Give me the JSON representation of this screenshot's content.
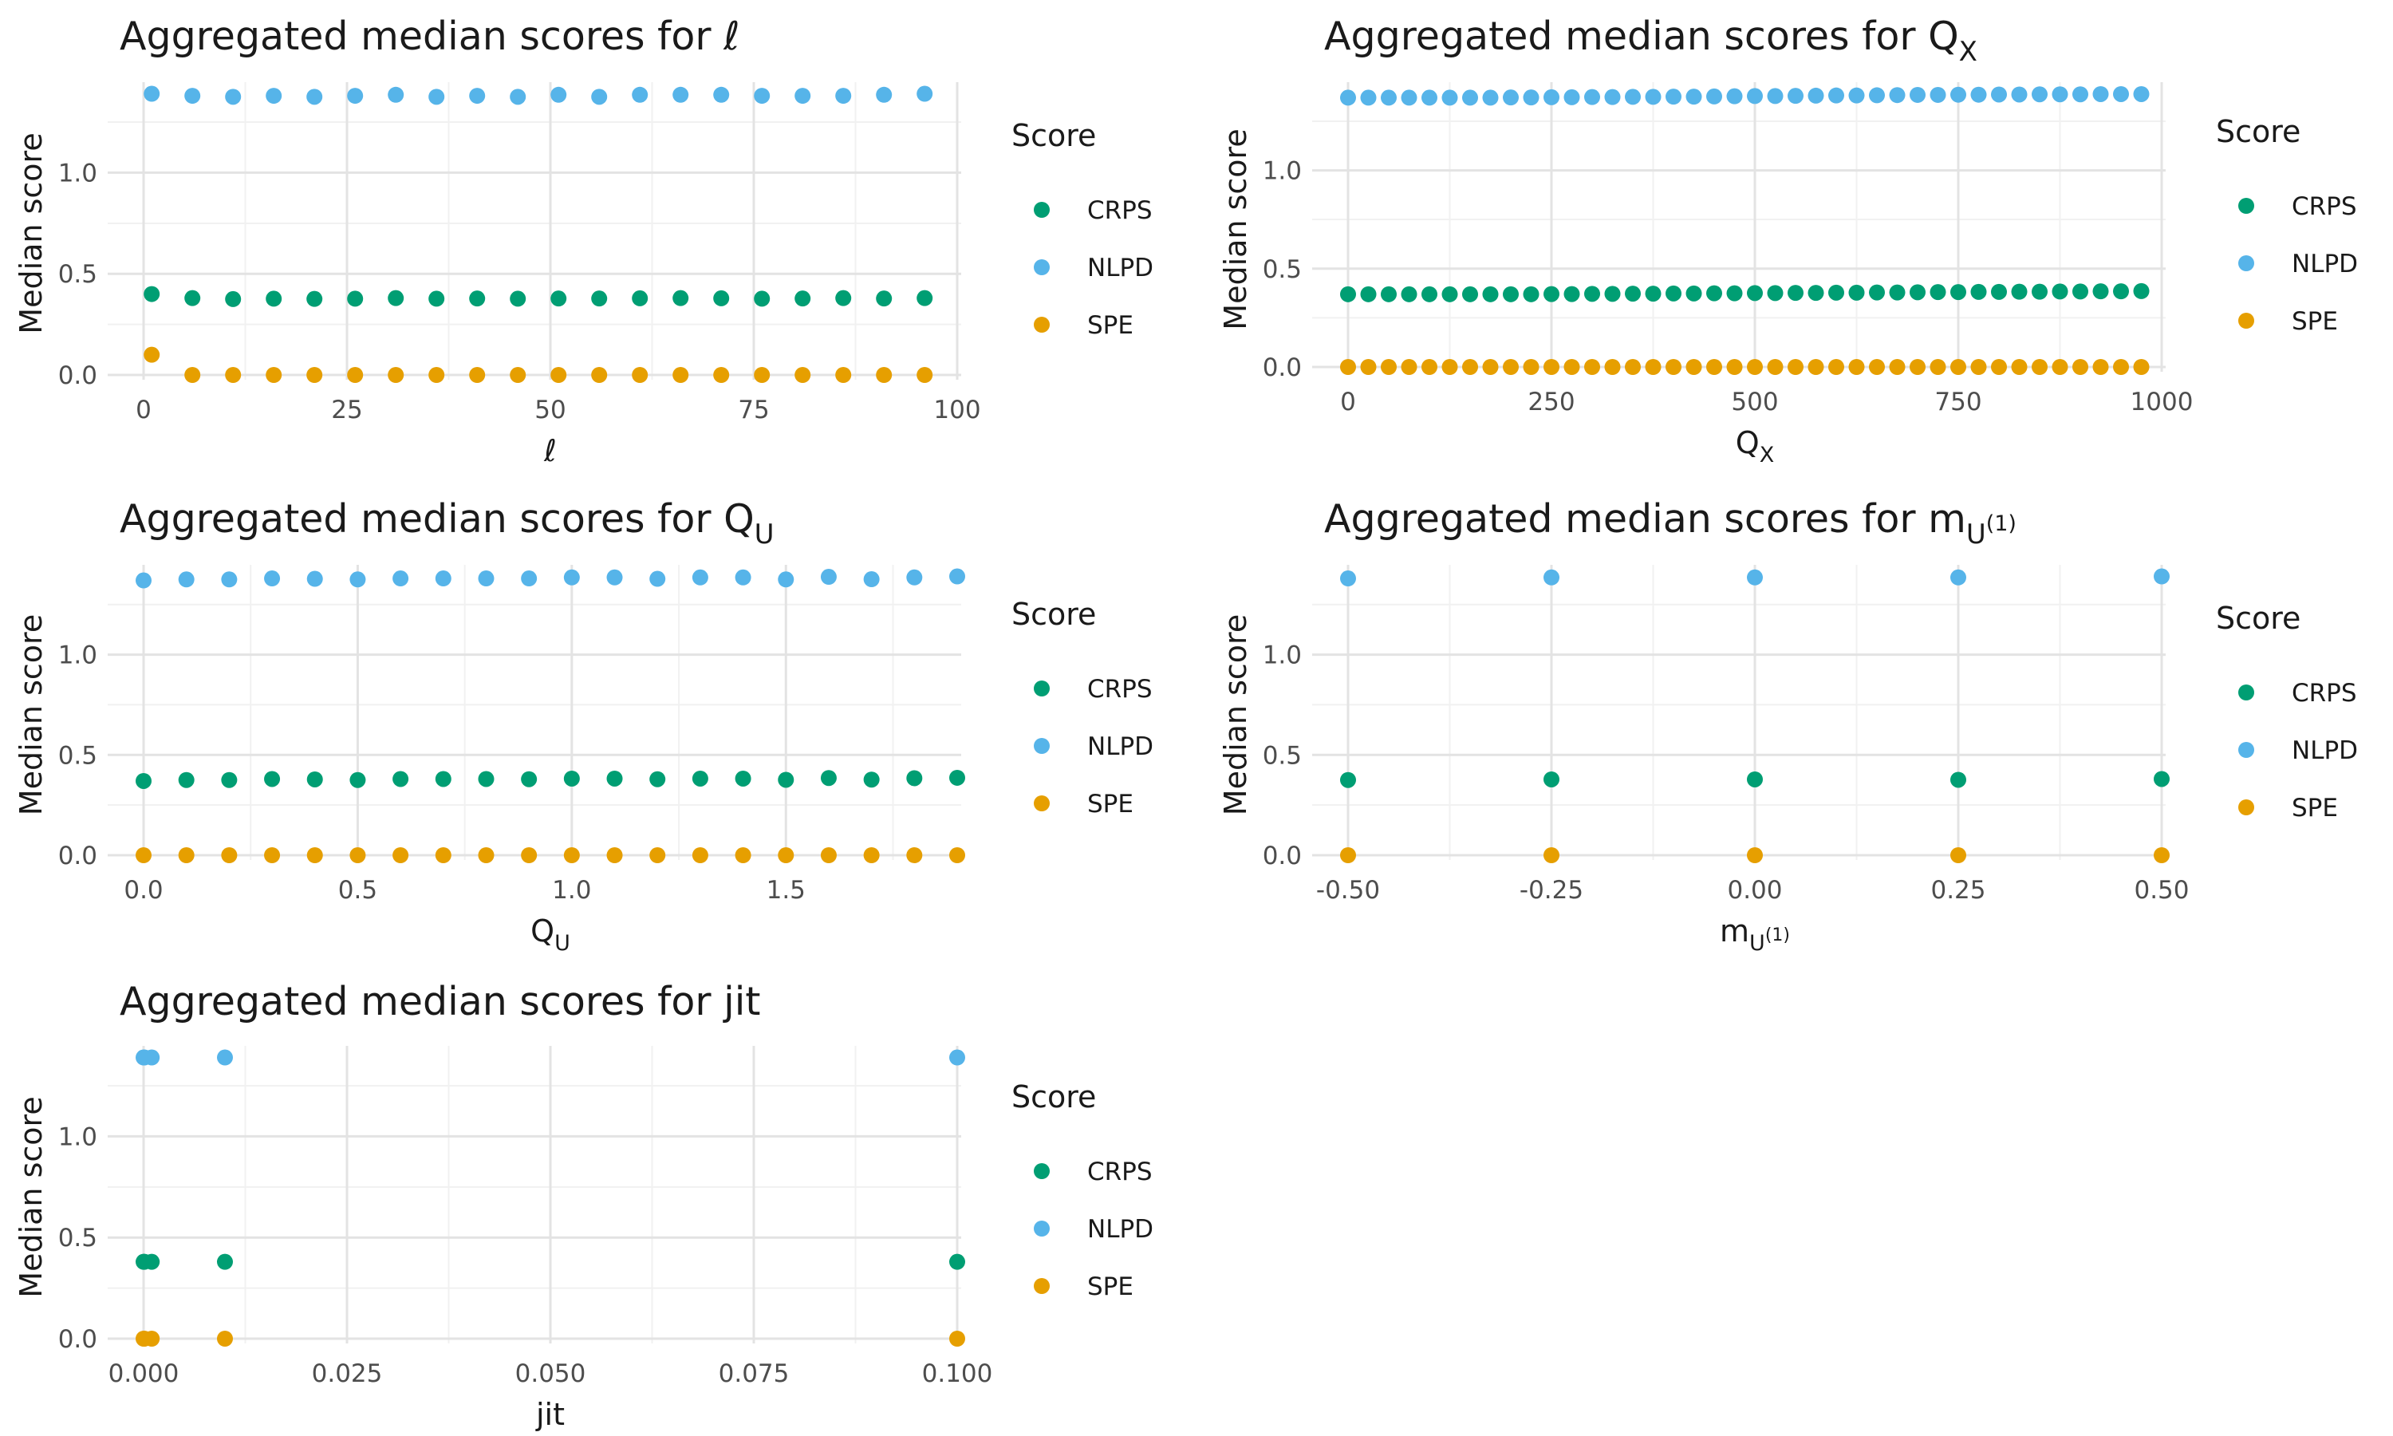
{
  "legend": {
    "title": "Score",
    "entries": [
      {
        "label": "CRPS",
        "color": "#009E73"
      },
      {
        "label": "NLPD",
        "color": "#56B4E9"
      },
      {
        "label": "SPE",
        "color": "#E69F00"
      }
    ]
  },
  "chart_data": [
    {
      "type": "scatter",
      "title_prefix": "Aggregated median scores for ",
      "symbol": {
        "main": "ℓ",
        "sub": "",
        "sup": ""
      },
      "xlabel": "ℓ",
      "ylabel": "Median score",
      "xlim": [
        0,
        100
      ],
      "ylim": [
        0,
        1.4
      ],
      "xticks": [
        {
          "value": 0,
          "label": "0"
        },
        {
          "value": 25,
          "label": "25"
        },
        {
          "value": 50,
          "label": "50"
        },
        {
          "value": 75,
          "label": "75"
        },
        {
          "value": 100,
          "label": "100"
        }
      ],
      "yticks": [
        {
          "value": 0,
          "label": "0.0"
        },
        {
          "value": 0.5,
          "label": "0.5"
        },
        {
          "value": 1,
          "label": "1.0"
        }
      ],
      "grid": true,
      "legend_position": "right",
      "x": [
        1,
        6,
        11,
        16,
        21,
        26,
        31,
        36,
        41,
        46,
        51,
        56,
        61,
        66,
        71,
        76,
        81,
        86,
        91,
        96
      ],
      "series": [
        {
          "name": "CRPS",
          "values": [
            0.4,
            0.38,
            0.375,
            0.377,
            0.376,
            0.377,
            0.38,
            0.377,
            0.378,
            0.377,
            0.378,
            0.378,
            0.379,
            0.38,
            0.379,
            0.377,
            0.378,
            0.38,
            0.378,
            0.38
          ]
        },
        {
          "name": "NLPD",
          "values": [
            1.39,
            1.38,
            1.375,
            1.38,
            1.375,
            1.38,
            1.385,
            1.375,
            1.38,
            1.375,
            1.385,
            1.375,
            1.385,
            1.385,
            1.385,
            1.38,
            1.38,
            1.38,
            1.385,
            1.39
          ]
        },
        {
          "name": "SPE",
          "values": [
            0.1,
            0.0,
            0.0,
            0.0,
            0.0,
            0.0,
            0.0,
            0.0,
            0.0,
            0.0,
            0.0,
            0.0,
            0.0,
            0.0,
            0.0,
            0.0,
            0.0,
            0.0,
            0.0,
            0.0
          ]
        }
      ]
    },
    {
      "type": "scatter",
      "title_prefix": "Aggregated median scores for ",
      "symbol": {
        "main": "Q",
        "sub": "X",
        "sup": ""
      },
      "xlabel": "Q_X",
      "ylabel": "Median score",
      "xlim": [
        0,
        1000
      ],
      "ylim": [
        0,
        1.4
      ],
      "xticks": [
        {
          "value": 0,
          "label": "0"
        },
        {
          "value": 250,
          "label": "250"
        },
        {
          "value": 500,
          "label": "500"
        },
        {
          "value": 750,
          "label": "750"
        },
        {
          "value": 1000,
          "label": "1000"
        }
      ],
      "yticks": [
        {
          "value": 0,
          "label": "0.0"
        },
        {
          "value": 0.5,
          "label": "0.5"
        },
        {
          "value": 1,
          "label": "1.0"
        }
      ],
      "grid": true,
      "legend_position": "right",
      "x": [
        0,
        25,
        50,
        75,
        100,
        125,
        150,
        175,
        200,
        225,
        250,
        275,
        300,
        325,
        350,
        375,
        400,
        425,
        450,
        475,
        500,
        525,
        550,
        575,
        600,
        625,
        650,
        675,
        700,
        725,
        750,
        775,
        800,
        825,
        850,
        875,
        900,
        925,
        950,
        975
      ],
      "series": [
        {
          "name": "CRPS",
          "values": [
            0.37,
            0.37,
            0.37,
            0.37,
            0.37,
            0.37,
            0.37,
            0.37,
            0.37,
            0.37,
            0.371,
            0.371,
            0.372,
            0.372,
            0.373,
            0.373,
            0.374,
            0.374,
            0.375,
            0.375,
            0.376,
            0.376,
            0.377,
            0.377,
            0.378,
            0.378,
            0.379,
            0.379,
            0.38,
            0.381,
            0.381,
            0.382,
            0.382,
            0.383,
            0.383,
            0.384,
            0.384,
            0.385,
            0.385,
            0.386
          ]
        },
        {
          "name": "NLPD",
          "values": [
            1.37,
            1.37,
            1.37,
            1.37,
            1.37,
            1.37,
            1.37,
            1.37,
            1.371,
            1.371,
            1.372,
            1.372,
            1.373,
            1.373,
            1.374,
            1.374,
            1.375,
            1.375,
            1.376,
            1.377,
            1.378,
            1.378,
            1.379,
            1.38,
            1.381,
            1.381,
            1.382,
            1.383,
            1.384,
            1.384,
            1.385,
            1.385,
            1.386,
            1.386,
            1.387,
            1.387,
            1.387,
            1.388,
            1.388,
            1.388
          ]
        },
        {
          "name": "SPE",
          "values": [
            0.0,
            0.0,
            0.0,
            0.0,
            0.0,
            0.0,
            0.0,
            0.0,
            0.0,
            0.0,
            0.0,
            0.0,
            0.0,
            0.0,
            0.0,
            0.0,
            0.0,
            0.0,
            0.0,
            0.0,
            0.0,
            0.0,
            0.0,
            0.0,
            0.0,
            0.0,
            0.0,
            0.0,
            0.0,
            0.0,
            0.0,
            0.0,
            0.0,
            0.0,
            0.0,
            0.0,
            0.0,
            0.0,
            0.0,
            0.0
          ]
        }
      ]
    },
    {
      "type": "scatter",
      "title_prefix": "Aggregated median scores for ",
      "symbol": {
        "main": "Q",
        "sub": "U",
        "sup": ""
      },
      "xlabel": "Q_U",
      "ylabel": "Median score",
      "xlim": [
        0,
        1.9
      ],
      "ylim": [
        0,
        1.4
      ],
      "xticks": [
        {
          "value": 0,
          "label": "0.0"
        },
        {
          "value": 0.5,
          "label": "0.5"
        },
        {
          "value": 1,
          "label": "1.0"
        },
        {
          "value": 1.5,
          "label": "1.5"
        }
      ],
      "yticks": [
        {
          "value": 0,
          "label": "0.0"
        },
        {
          "value": 0.5,
          "label": "0.5"
        },
        {
          "value": 1,
          "label": "1.0"
        }
      ],
      "grid": true,
      "legend_position": "right",
      "x": [
        0.0,
        0.1,
        0.2,
        0.3,
        0.4,
        0.5,
        0.6,
        0.7,
        0.8,
        0.9,
        1.0,
        1.1,
        1.2,
        1.3,
        1.4,
        1.5,
        1.6,
        1.7,
        1.8,
        1.9
      ],
      "series": [
        {
          "name": "CRPS",
          "values": [
            0.37,
            0.375,
            0.375,
            0.38,
            0.378,
            0.375,
            0.38,
            0.38,
            0.38,
            0.379,
            0.382,
            0.382,
            0.379,
            0.382,
            0.382,
            0.376,
            0.385,
            0.377,
            0.384,
            0.386
          ]
        },
        {
          "name": "NLPD",
          "values": [
            1.37,
            1.375,
            1.375,
            1.38,
            1.378,
            1.375,
            1.38,
            1.38,
            1.38,
            1.38,
            1.385,
            1.385,
            1.378,
            1.385,
            1.385,
            1.375,
            1.388,
            1.376,
            1.385,
            1.39
          ]
        },
        {
          "name": "SPE",
          "values": [
            0.0,
            0.0,
            0.0,
            0.0,
            0.0,
            0.0,
            0.0,
            0.0,
            0.0,
            0.0,
            0.0,
            0.0,
            0.0,
            0.0,
            0.0,
            0.0,
            0.0,
            0.0,
            0.0,
            0.0
          ]
        }
      ]
    },
    {
      "type": "scatter",
      "title_prefix": "Aggregated median scores for ",
      "symbol": {
        "main": "m",
        "sub": "U",
        "sup": "(1)"
      },
      "xlabel": "m_U^(1)",
      "ylabel": "Median score",
      "xlim": [
        -0.5,
        0.5
      ],
      "ylim": [
        0,
        1.4
      ],
      "xticks": [
        {
          "value": -0.5,
          "label": "-0.50"
        },
        {
          "value": -0.25,
          "label": "-0.25"
        },
        {
          "value": 0,
          "label": "0.00"
        },
        {
          "value": 0.25,
          "label": "0.25"
        },
        {
          "value": 0.5,
          "label": "0.50"
        }
      ],
      "yticks": [
        {
          "value": 0,
          "label": "0.0"
        },
        {
          "value": 0.5,
          "label": "0.5"
        },
        {
          "value": 1,
          "label": "1.0"
        }
      ],
      "grid": true,
      "legend_position": "right",
      "x": [
        -0.5,
        -0.25,
        0.0,
        0.25,
        0.5
      ],
      "series": [
        {
          "name": "CRPS",
          "values": [
            0.375,
            0.378,
            0.378,
            0.376,
            0.38
          ]
        },
        {
          "name": "NLPD",
          "values": [
            1.38,
            1.385,
            1.385,
            1.385,
            1.39
          ]
        },
        {
          "name": "SPE",
          "values": [
            0.0,
            0.0,
            0.0,
            0.0,
            0.0
          ]
        }
      ]
    },
    {
      "type": "scatter",
      "title_prefix": "Aggregated median scores for jit",
      "symbol": {
        "main": "",
        "sub": "",
        "sup": ""
      },
      "xlabel": "jit",
      "ylabel": "Median score",
      "xlim": [
        0,
        0.1
      ],
      "ylim": [
        0,
        1.4
      ],
      "xticks": [
        {
          "value": 0,
          "label": "0.000"
        },
        {
          "value": 0.025,
          "label": "0.025"
        },
        {
          "value": 0.05,
          "label": "0.050"
        },
        {
          "value": 0.075,
          "label": "0.075"
        },
        {
          "value": 0.1,
          "label": "0.100"
        }
      ],
      "yticks": [
        {
          "value": 0,
          "label": "0.0"
        },
        {
          "value": 0.5,
          "label": "0.5"
        },
        {
          "value": 1,
          "label": "1.0"
        }
      ],
      "grid": true,
      "legend_position": "right",
      "x": [
        0.0,
        0.0001,
        0.001,
        0.01,
        0.1
      ],
      "series": [
        {
          "name": "CRPS",
          "values": [
            0.38,
            0.38,
            0.38,
            0.38,
            0.38
          ]
        },
        {
          "name": "NLPD",
          "values": [
            1.39,
            1.39,
            1.39,
            1.39,
            1.39
          ]
        },
        {
          "name": "SPE",
          "values": [
            0.0,
            0.0,
            0.0,
            0.0,
            0.0
          ]
        }
      ]
    }
  ]
}
